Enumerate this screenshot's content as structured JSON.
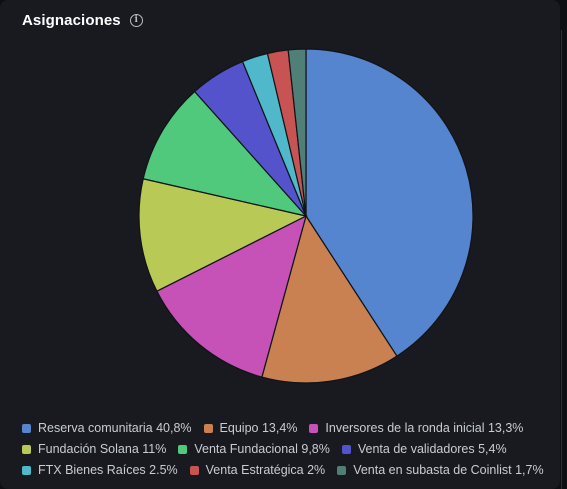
{
  "header": {
    "title": "Asignaciones",
    "info_icon": "info-circle-icon"
  },
  "chart_data": {
    "type": "pie",
    "title": "Asignaciones",
    "slices": [
      {
        "name": "Reserva comunitaria",
        "value": 40.8,
        "label": "Reserva comunitaria 40,8%",
        "color": "#5585cf"
      },
      {
        "name": "Equipo",
        "value": 13.4,
        "label": "Equipo 13,4%",
        "color": "#c98152"
      },
      {
        "name": "Inversores de la ronda inicial",
        "value": 13.3,
        "label": "Inversores de la ronda inicial 13,3%",
        "color": "#c651b7"
      },
      {
        "name": "Fundación Solana",
        "value": 11,
        "label": "Fundación Solana 11%",
        "color": "#b8c955"
      },
      {
        "name": "Venta Fundacional",
        "value": 9.8,
        "label": "Venta Fundacional 9,8%",
        "color": "#50c97c"
      },
      {
        "name": "Venta de validadores",
        "value": 5.4,
        "label": "Venta de validadores 5,4%",
        "color": "#5553cb"
      },
      {
        "name": "FTX Bienes Raíces",
        "value": 2.5,
        "label": "FTX Bienes Raíces 2.5%",
        "color": "#4fb8cb"
      },
      {
        "name": "Venta Estratégica",
        "value": 2,
        "label": "Venta Estratégica 2%",
        "color": "#c75353"
      },
      {
        "name": "Venta en subasta de Coinlist",
        "value": 1.7,
        "label": "Venta en subasta de Coinlist 1,7%",
        "color": "#4f7f77"
      }
    ],
    "start_angle": "top",
    "direction": "clockwise",
    "legend_position": "bottom"
  }
}
